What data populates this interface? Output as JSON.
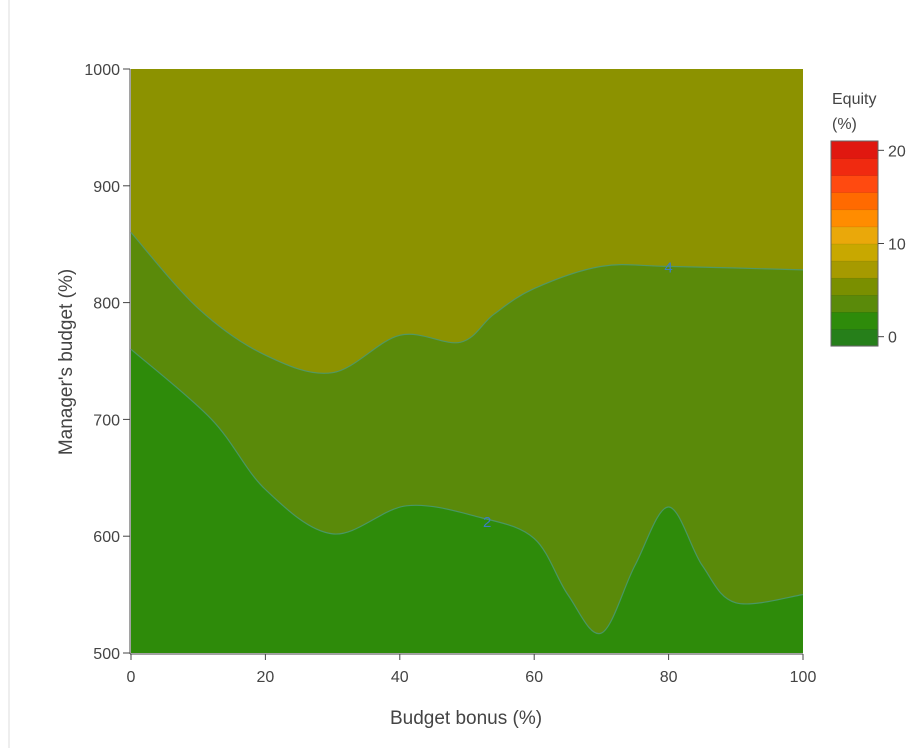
{
  "chart_data": {
    "type": "contour",
    "xlabel": "Budget bonus (%)",
    "ylabel": "Manager's budget (%)",
    "xlim": [
      0,
      100
    ],
    "ylim": [
      500,
      1000
    ],
    "x_ticks": [
      "0",
      "20",
      "40",
      "60",
      "80",
      "100"
    ],
    "y_ticks": [
      "500",
      "600",
      "700",
      "800",
      "900",
      "1000"
    ],
    "colorbar": {
      "title_line1": "Equity",
      "title_line2": "(%)",
      "range": [
        -1,
        21
      ],
      "tick_labels": [
        "0",
        "10",
        "20"
      ],
      "tick_values": [
        0,
        10,
        20
      ],
      "colors": [
        "#267f1a",
        "#2e8b0a",
        "#5a8a0a",
        "#7a8f00",
        "#a69a00",
        "#c8a800",
        "#eaa80a",
        "#ff8c00",
        "#ff6a00",
        "#ff4a10",
        "#f02a10",
        "#e01810"
      ]
    },
    "contour_levels": [
      {
        "level": 2,
        "label": "2",
        "label_at": [
          53,
          612
        ],
        "color": "#2e8b0a",
        "x": [
          0,
          12,
          20,
          30,
          41,
          52,
          60,
          65,
          70,
          75,
          80,
          85,
          90,
          100
        ],
        "y": [
          760,
          700,
          640,
          602,
          626,
          616,
          598,
          550,
          517,
          575,
          625,
          575,
          543,
          550
        ]
      },
      {
        "level": 4,
        "label": "4",
        "label_at": [
          80,
          830
        ],
        "color": "#5a8a0a",
        "x": [
          0,
          10,
          20,
          30,
          40,
          49,
          54,
          60,
          70,
          80,
          100
        ],
        "y": [
          860,
          795,
          755,
          740,
          772,
          766,
          790,
          812,
          831,
          831,
          828
        ]
      }
    ],
    "region_colors": {
      "below_2": "#2e8b0a",
      "between_2_4": "#5a8a0a",
      "above_4": "#8c9200"
    },
    "line_color": "#4a9a7a"
  }
}
